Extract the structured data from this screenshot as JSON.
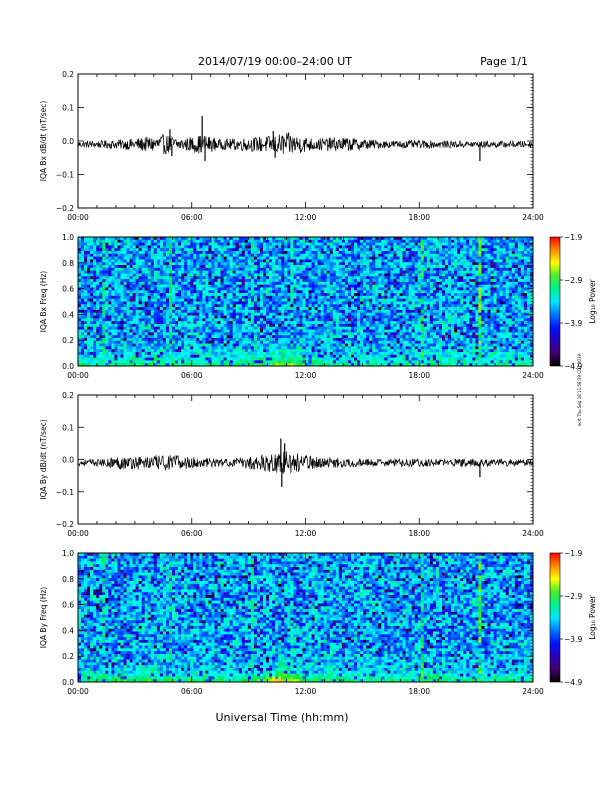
{
  "header": {
    "title": "2014/07/19  00:00–24:00 UT",
    "page_label": "Page 1/1"
  },
  "footer": {
    "xlabel": "Universal Time (hh:mm)",
    "side_note": "ecrt Thu Sep 18 11:58:39 CDT 2019"
  },
  "chart_data": [
    {
      "type": "line",
      "name": "dbdt-x",
      "ylabel": "IQA Bx dB/dt (nT/sec)",
      "xlim": [
        0,
        24
      ],
      "ylim": [
        -0.2,
        0.2
      ],
      "x_ticks": [
        "00:00",
        "06:00",
        "12:00",
        "18:00",
        "24:00"
      ],
      "y_ticks": [
        "0.2",
        "0.1",
        "0.0",
        "−0.1",
        "−0.2"
      ],
      "y_tick_values": [
        0.2,
        0.1,
        0.0,
        -0.1,
        -0.2
      ],
      "baseline": -0.01,
      "noise_envelope": [
        {
          "hour": 0,
          "amp": 0.01
        },
        {
          "hour": 1.5,
          "amp": 0.012
        },
        {
          "hour": 3.0,
          "amp": 0.018
        },
        {
          "hour": 4.6,
          "amp": 0.03
        },
        {
          "hour": 5.5,
          "amp": 0.018
        },
        {
          "hour": 6.6,
          "amp": 0.03
        },
        {
          "hour": 7.5,
          "amp": 0.015
        },
        {
          "hour": 10.0,
          "amp": 0.025
        },
        {
          "hour": 11.0,
          "amp": 0.035
        },
        {
          "hour": 12.5,
          "amp": 0.018
        },
        {
          "hour": 14.0,
          "amp": 0.022
        },
        {
          "hour": 16.0,
          "amp": 0.012
        },
        {
          "hour": 18.0,
          "amp": 0.012
        },
        {
          "hour": 21.0,
          "amp": 0.01
        },
        {
          "hour": 24.0,
          "amp": 0.01
        }
      ],
      "spikes": [
        {
          "hour": 4.85,
          "value": 0.035
        },
        {
          "hour": 4.95,
          "value": -0.045
        },
        {
          "hour": 6.55,
          "value": 0.075
        },
        {
          "hour": 6.7,
          "value": -0.06
        },
        {
          "hour": 10.3,
          "value": 0.03
        },
        {
          "hour": 10.4,
          "value": -0.05
        },
        {
          "hour": 21.2,
          "value": -0.06
        }
      ]
    },
    {
      "type": "heatmap",
      "name": "spec-x",
      "ylabel": "IQA Bx Freq (Hz)",
      "xlim": [
        0,
        24
      ],
      "ylim": [
        0.0,
        1.0
      ],
      "x_ticks": [
        "00:00",
        "06:00",
        "12:00",
        "18:00",
        "24:00"
      ],
      "y_ticks": [
        "1.0",
        "0.8",
        "0.6",
        "0.4",
        "0.2",
        "0.0"
      ],
      "y_tick_values": [
        1.0,
        0.8,
        0.6,
        0.4,
        0.2,
        0.0
      ],
      "colorbar": {
        "label": "Log₁₀ Power",
        "range": [
          -4.9,
          -1.9
        ],
        "ticks": [
          "−1.9",
          "−2.9",
          "−3.9",
          "−4.9"
        ],
        "tick_values": [
          -1.9,
          -2.9,
          -3.9,
          -4.9
        ]
      },
      "background_power": -3.55,
      "low_freq_enhancement": [
        {
          "hour": 0,
          "power": -3.0
        },
        {
          "hour": 2,
          "power": -3.0
        },
        {
          "hour": 4,
          "power": -2.9
        },
        {
          "hour": 6,
          "power": -3.0
        },
        {
          "hour": 9,
          "power": -2.9
        },
        {
          "hour": 11,
          "power": -2.5
        },
        {
          "hour": 13,
          "power": -3.0
        },
        {
          "hour": 16,
          "power": -3.0
        },
        {
          "hour": 18,
          "power": -2.9
        },
        {
          "hour": 20,
          "power": -3.0
        },
        {
          "hour": 24,
          "power": -3.0
        }
      ],
      "vertical_lines": [
        {
          "hour": 1.4,
          "power": -3.1
        },
        {
          "hour": 4.9,
          "power": -3.0
        },
        {
          "hour": 9.2,
          "power": -3.1
        },
        {
          "hour": 11.3,
          "power": -3.2
        },
        {
          "hour": 18.1,
          "power": -2.9
        },
        {
          "hour": 21.2,
          "power": -2.8
        }
      ]
    },
    {
      "type": "line",
      "name": "dbdt-y",
      "ylabel": "IQA By dB/dt (nT/sec)",
      "xlim": [
        0,
        24
      ],
      "ylim": [
        -0.2,
        0.2
      ],
      "x_ticks": [
        "00:00",
        "06:00",
        "12:00",
        "18:00",
        "24:00"
      ],
      "y_ticks": [
        "0.2",
        "0.1",
        "0.0",
        "−0.1",
        "−0.2"
      ],
      "y_tick_values": [
        0.2,
        0.1,
        0.0,
        -0.1,
        -0.2
      ],
      "baseline": -0.01,
      "noise_envelope": [
        {
          "hour": 0,
          "amp": 0.01
        },
        {
          "hour": 1.5,
          "amp": 0.012
        },
        {
          "hour": 2.0,
          "amp": 0.02
        },
        {
          "hour": 3.5,
          "amp": 0.022
        },
        {
          "hour": 5.2,
          "amp": 0.025
        },
        {
          "hour": 6.5,
          "amp": 0.015
        },
        {
          "hour": 8.0,
          "amp": 0.012
        },
        {
          "hour": 10.3,
          "amp": 0.03
        },
        {
          "hour": 11.0,
          "amp": 0.04
        },
        {
          "hour": 12.5,
          "amp": 0.018
        },
        {
          "hour": 15.0,
          "amp": 0.012
        },
        {
          "hour": 18.5,
          "amp": 0.012
        },
        {
          "hour": 21.0,
          "amp": 0.012
        },
        {
          "hour": 24.0,
          "amp": 0.012
        }
      ],
      "spikes": [
        {
          "hour": 10.7,
          "value": 0.065
        },
        {
          "hour": 10.75,
          "value": -0.085
        },
        {
          "hour": 10.9,
          "value": 0.05
        },
        {
          "hour": 21.2,
          "value": -0.055
        }
      ]
    },
    {
      "type": "heatmap",
      "name": "spec-y",
      "ylabel": "IQA By Freq (Hz)",
      "xlim": [
        0,
        24
      ],
      "ylim": [
        0.0,
        1.0
      ],
      "x_ticks": [
        "00:00",
        "06:00",
        "12:00",
        "18:00",
        "24:00"
      ],
      "y_ticks": [
        "1.0",
        "0.8",
        "0.6",
        "0.4",
        "0.2",
        "0.0"
      ],
      "y_tick_values": [
        1.0,
        0.8,
        0.6,
        0.4,
        0.2,
        0.0
      ],
      "colorbar": {
        "label": "Log₁₀ Power",
        "range": [
          -4.9,
          -1.9
        ],
        "ticks": [
          "−1.9",
          "−2.9",
          "−3.9",
          "−4.9"
        ],
        "tick_values": [
          -1.9,
          -2.9,
          -3.9,
          -4.9
        ]
      },
      "background_power": -3.55,
      "low_freq_enhancement": [
        {
          "hour": 0,
          "power": -3.0
        },
        {
          "hour": 2,
          "power": -2.9
        },
        {
          "hour": 4,
          "power": -2.8
        },
        {
          "hour": 6,
          "power": -2.9
        },
        {
          "hour": 9,
          "power": -2.9
        },
        {
          "hour": 10.8,
          "power": -2.2
        },
        {
          "hour": 12,
          "power": -2.8
        },
        {
          "hour": 16,
          "power": -3.0
        },
        {
          "hour": 18,
          "power": -2.9
        },
        {
          "hour": 20,
          "power": -3.0
        },
        {
          "hour": 24,
          "power": -3.0
        }
      ],
      "vertical_lines": [
        {
          "hour": 1.4,
          "power": -3.1
        },
        {
          "hour": 4.9,
          "power": -3.0
        },
        {
          "hour": 9.2,
          "power": -3.1
        },
        {
          "hour": 11.3,
          "power": -3.2
        },
        {
          "hour": 18.1,
          "power": -2.9
        },
        {
          "hour": 21.2,
          "power": -2.8
        }
      ]
    }
  ]
}
